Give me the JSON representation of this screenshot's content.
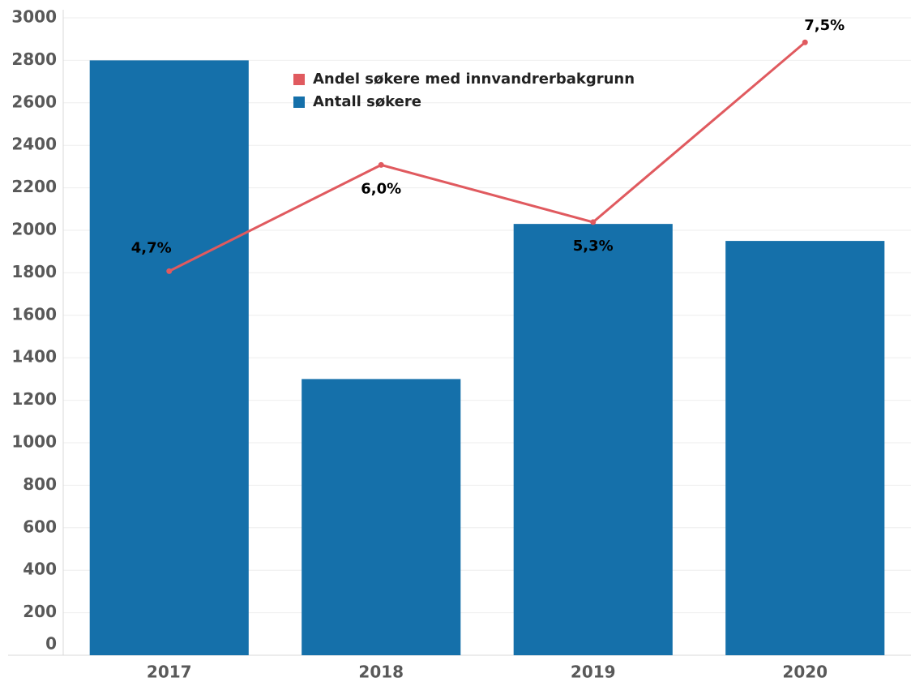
{
  "chart_data": {
    "type": "bar_line",
    "categories": [
      "2017",
      "2018",
      "2019",
      "2020"
    ],
    "series": [
      {
        "name": "Andel søkere med innvandrerbakgrunn",
        "color": "#e05a5f",
        "type": "line",
        "axis": "y2",
        "values": [
          4.7,
          6.0,
          5.3,
          7.5
        ],
        "value_labels": [
          "4,7%",
          "6,0%",
          "5,3%",
          "7,5%"
        ]
      },
      {
        "name": "Antall søkere",
        "color": "#1570aa",
        "type": "bar",
        "values": [
          2800,
          1300,
          2030,
          1950
        ]
      }
    ],
    "ylim": [
      0,
      3000
    ],
    "yticks": [
      0,
      200,
      400,
      600,
      800,
      1000,
      1200,
      1400,
      1600,
      1800,
      2000,
      2200,
      2400,
      2600,
      2800,
      3000
    ],
    "y2lim": [
      0,
      7.8
    ],
    "grid": true
  }
}
